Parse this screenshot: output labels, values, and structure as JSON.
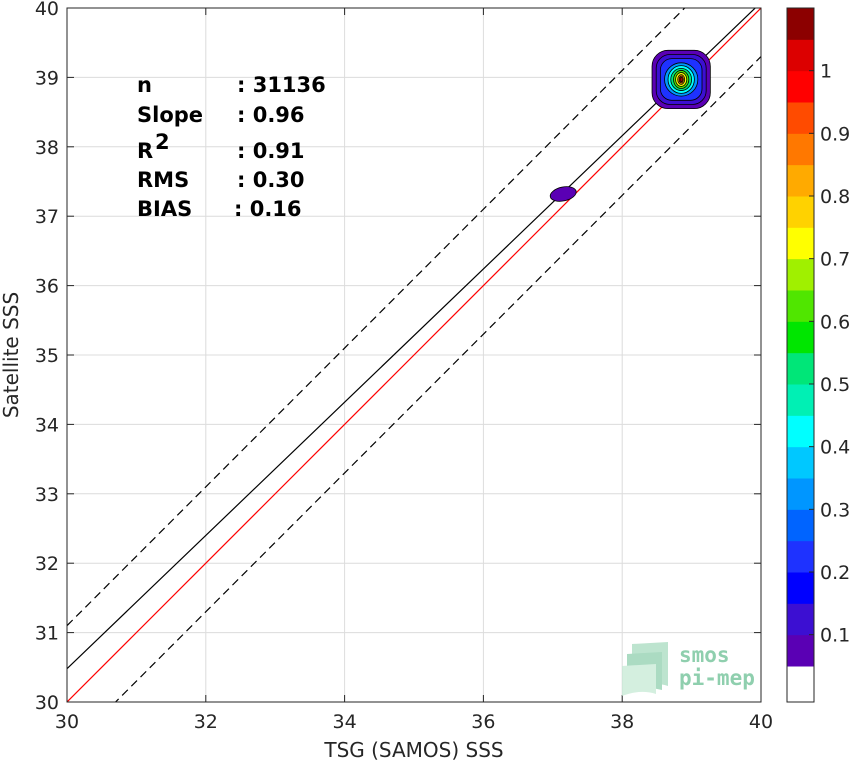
{
  "chart_data": {
    "type": "heatmap",
    "xlabel": "TSG (SAMOS) SSS",
    "ylabel": "Satellite SSS",
    "xlim": [
      30,
      40
    ],
    "ylim": [
      30,
      40
    ],
    "x_ticks": [
      "30",
      "32",
      "34",
      "36",
      "38",
      "40"
    ],
    "y_ticks": [
      "30",
      "31",
      "32",
      "33",
      "34",
      "35",
      "36",
      "37",
      "38",
      "39",
      "40"
    ],
    "grid": true,
    "stats": [
      {
        "label": "n",
        "value": ": 31136"
      },
      {
        "label": "Slope",
        "value": ": 0.96"
      },
      {
        "label": "R",
        "sup": "2",
        "value": ": 0.91"
      },
      {
        "label": "RMS",
        "value": ": 0.30"
      },
      {
        "label": "BIAS",
        "value": ": 0.16"
      }
    ],
    "lines": [
      {
        "kind": "identity",
        "color": "#ff0000",
        "x": [
          30,
          40
        ],
        "y": [
          30,
          40
        ]
      },
      {
        "kind": "fit",
        "color": "#000000",
        "x": [
          30,
          40
        ],
        "y": [
          30.48,
          40.08
        ]
      },
      {
        "kind": "upper-bound",
        "color": "#000000",
        "dash": true,
        "x": [
          30,
          40
        ],
        "y": [
          31.1,
          41.1
        ]
      },
      {
        "kind": "lower-bound",
        "color": "#000000",
        "dash": true,
        "x": [
          30,
          40
        ],
        "y": [
          29.3,
          39.3
        ]
      }
    ],
    "density_clusters": [
      {
        "cx": 38.85,
        "cy": 38.97,
        "levels": [
          {
            "level": 0.05,
            "rx": 0.42,
            "ry": 0.42
          },
          {
            "level": 0.1,
            "rx": 0.36,
            "ry": 0.36
          },
          {
            "level": 0.2,
            "rx": 0.3,
            "ry": 0.3
          },
          {
            "level": 0.3,
            "rx": 0.24,
            "ry": 0.24
          },
          {
            "level": 0.4,
            "rx": 0.19,
            "ry": 0.2
          },
          {
            "level": 0.5,
            "rx": 0.15,
            "ry": 0.16
          },
          {
            "level": 0.6,
            "rx": 0.11,
            "ry": 0.13
          },
          {
            "level": 0.7,
            "rx": 0.08,
            "ry": 0.1
          },
          {
            "level": 0.8,
            "rx": 0.05,
            "ry": 0.07
          },
          {
            "level": 0.9,
            "rx": 0.03,
            "ry": 0.05
          },
          {
            "level": 1.0,
            "rx": 0.015,
            "ry": 0.03
          }
        ]
      },
      {
        "cx": 37.15,
        "cy": 37.32,
        "levels": [
          {
            "level": 0.05,
            "rx": 0.19,
            "ry": 0.1
          }
        ]
      }
    ],
    "colorbar": {
      "min": 0,
      "max": 1,
      "ticks": [
        "0.1",
        "0.2",
        "0.3",
        "0.4",
        "0.5",
        "0.6",
        "0.7",
        "0.8",
        "0.9",
        "1"
      ],
      "tick_values": [
        0.1,
        0.2,
        0.3,
        0.4,
        0.5,
        0.6,
        0.7,
        0.8,
        0.9,
        1.0
      ],
      "colors": [
        "#ffffff",
        "#5a00b4",
        "#3c0fd2",
        "#0000ff",
        "#1e32ff",
        "#0064ff",
        "#0096ff",
        "#00c8ff",
        "#00ffff",
        "#00f0b4",
        "#00e678",
        "#00e600",
        "#50e600",
        "#a0f000",
        "#ffff00",
        "#ffd200",
        "#ffaa00",
        "#ff7800",
        "#ff4b00",
        "#ff0000",
        "#dc0000",
        "#8c0000"
      ]
    }
  },
  "logo": {
    "line1": "smos",
    "line2": "pi-mep"
  }
}
